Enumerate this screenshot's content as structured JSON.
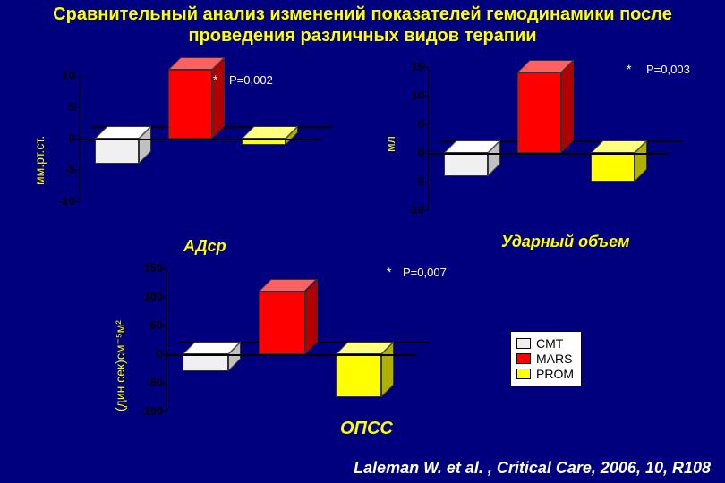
{
  "title_line1": "Сравнительный анализ изменений показателей гемодинамики после",
  "title_line2": "проведения различных видов терапии",
  "citation": "Laleman W. et al. , Critical Care, 2006, 10, R108",
  "colors": {
    "CMT": "#f0f0f0",
    "CMT_top": "#ffffff",
    "CMT_side": "#c0c0c0",
    "MARS": "#ff0000",
    "MARS_top": "#ff6060",
    "MARS_side": "#b00000",
    "PROM": "#ffff00",
    "PROM_top": "#ffff80",
    "PROM_side": "#b0b000",
    "accent": "#ffff00",
    "text": "#ffffff",
    "bg": "#00007f"
  },
  "legend": {
    "items": [
      {
        "label": "CMT",
        "color": "#f0f0f0"
      },
      {
        "label": "MARS",
        "color": "#ff0000"
      },
      {
        "label": "PROM",
        "color": "#ffff00"
      }
    ]
  },
  "charts": {
    "adsr": {
      "caption": "АДср",
      "ylabel": "мм.рт.ст.",
      "ylim": [
        -10,
        10
      ],
      "ytick_step": 5,
      "ticks": [
        "10",
        "5",
        "0",
        "-5",
        "-10"
      ],
      "pvalue": "P=0,002",
      "star": "*",
      "bars": [
        {
          "series": "CMT",
          "value": -4
        },
        {
          "series": "MARS",
          "value": 11
        },
        {
          "series": "PROM",
          "value": -1
        }
      ]
    },
    "stroke": {
      "caption": "Ударный объем",
      "ylabel": "мл",
      "ylim": [
        -10,
        15
      ],
      "ytick_step": 5,
      "ticks": [
        "15",
        "10",
        "5",
        "0",
        "-5",
        "-10"
      ],
      "pvalue": "P=0,003",
      "star": "*",
      "bars": [
        {
          "series": "CMT",
          "value": -4
        },
        {
          "series": "MARS",
          "value": 14
        },
        {
          "series": "PROM",
          "value": -5
        }
      ]
    },
    "opss": {
      "caption": "ОПСС",
      "ylabel": "(дин сек)см⁻⁵м²",
      "ylim": [
        -100,
        150
      ],
      "ytick_step": 50,
      "ticks": [
        "150",
        "100",
        "50",
        "0",
        "-50",
        "-100"
      ],
      "pvalue": "P=0,007",
      "star": "*",
      "bars": [
        {
          "series": "CMT",
          "value": -30
        },
        {
          "series": "MARS",
          "value": 110
        },
        {
          "series": "PROM",
          "value": -75
        }
      ]
    }
  }
}
